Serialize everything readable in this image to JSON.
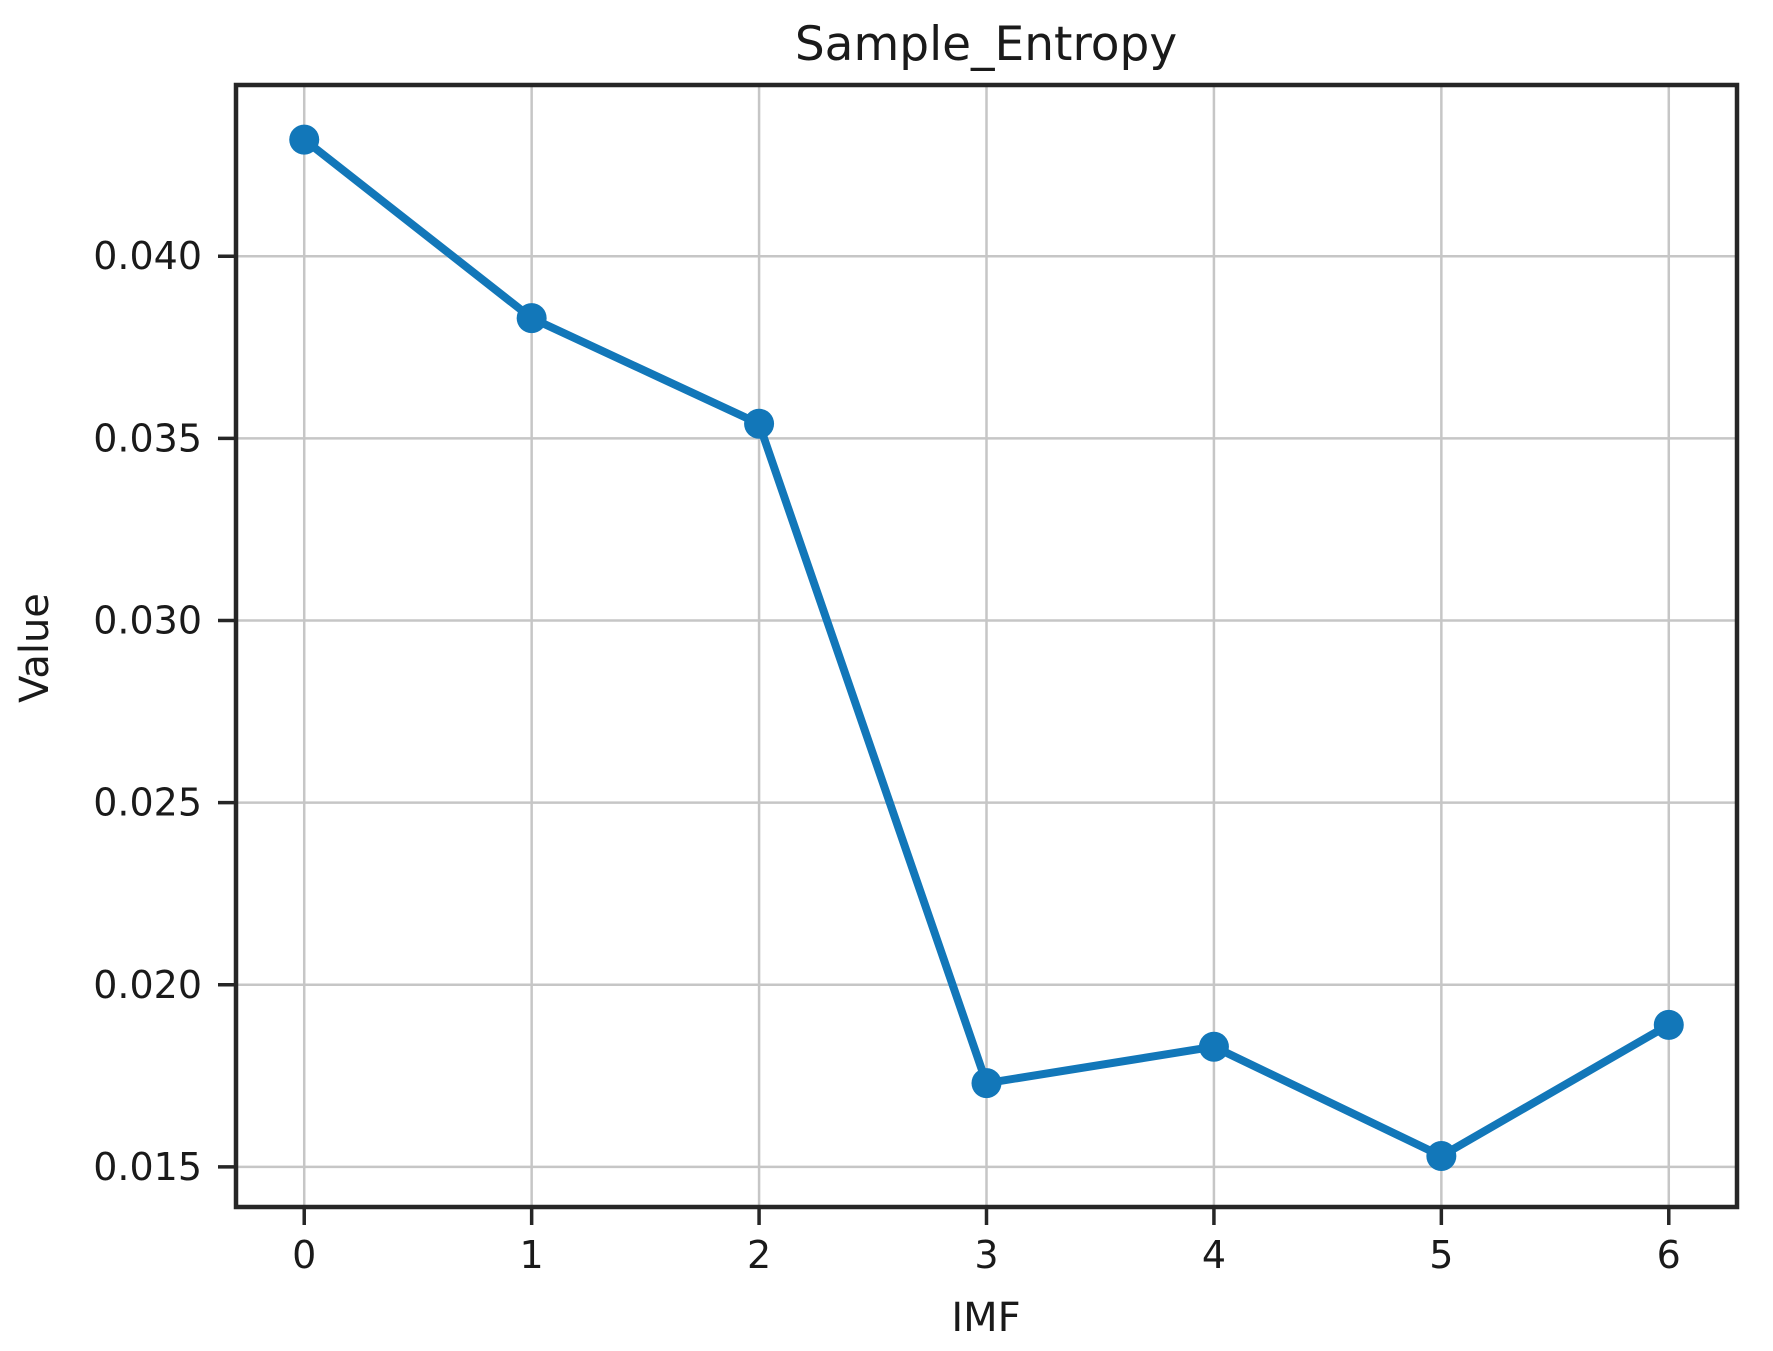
{
  "chart_data": {
    "type": "line",
    "title": "Sample_Entropy",
    "xlabel": "IMF",
    "ylabel": "Value",
    "x": [
      0,
      1,
      2,
      3,
      4,
      5,
      6
    ],
    "values": [
      0.0432,
      0.0383,
      0.0354,
      0.0173,
      0.0183,
      0.0153,
      0.0189
    ],
    "xticks": [
      0,
      1,
      2,
      3,
      4,
      5,
      6
    ],
    "xtick_labels": [
      "0",
      "1",
      "2",
      "3",
      "4",
      "5",
      "6"
    ],
    "yticks": [
      0.015,
      0.02,
      0.025,
      0.03,
      0.035,
      0.04
    ],
    "ytick_labels": [
      "0.015",
      "0.020",
      "0.025",
      "0.030",
      "0.035",
      "0.040"
    ],
    "xlim": [
      -0.3,
      6.3
    ],
    "ylim": [
      0.0139,
      0.0447
    ],
    "grid": true,
    "legend": false,
    "marker": "circle",
    "line_color": "#1277b9",
    "grid_color": "#c6c6c6",
    "spine_color": "#262626",
    "tick_color": "#262626",
    "text_color": "#1a1a1a",
    "background_color": "#ffffff"
  }
}
